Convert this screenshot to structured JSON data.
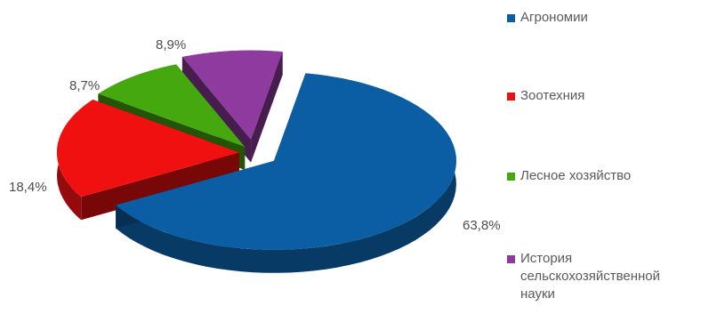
{
  "chart_data": {
    "type": "pie",
    "labels": [
      "Агрономии",
      "Зоотехния",
      "Лесное хозяйство",
      "История\nсельскохозяйственной\nнауки"
    ],
    "values": [
      63.8,
      18.4,
      8.7,
      8.9
    ],
    "data_labels": [
      "63,8%",
      "18,4%",
      "8,7%",
      "8,9%"
    ],
    "colors": [
      "#0b5ea3",
      "#f01010",
      "#45a80f",
      "#8e3a9e"
    ],
    "exploded": true,
    "three_d": true,
    "legend_position": "right"
  }
}
